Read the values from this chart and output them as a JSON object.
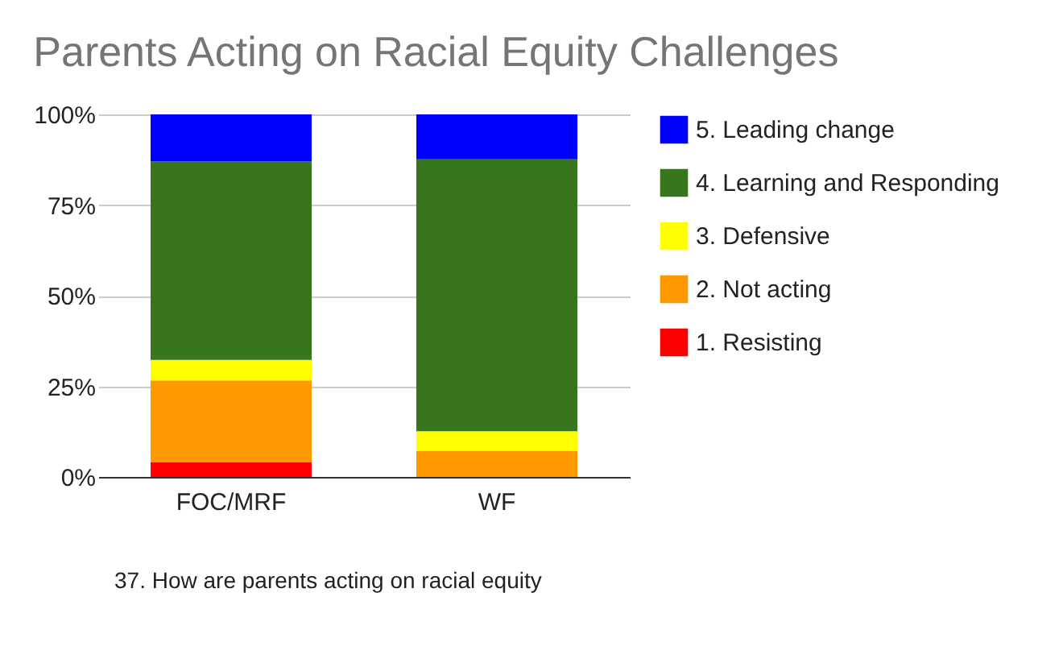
{
  "chart_data": {
    "type": "bar",
    "title": "Parents Acting on Racial Equity Challenges",
    "stacked": true,
    "categories": [
      "FOC/MRF",
      "WF"
    ],
    "series": [
      {
        "name": "1. Resisting",
        "color": "#ff0000",
        "values": [
          4.1,
          0
        ]
      },
      {
        "name": "2. Not acting",
        "color": "#ff9900",
        "values": [
          22.5,
          7.2
        ]
      },
      {
        "name": "3. Defensive",
        "color": "#ffff00",
        "values": [
          5.7,
          5.4
        ]
      },
      {
        "name": "4. Learning and Responding",
        "color": "#38761d",
        "values": [
          54.7,
          75.0
        ]
      },
      {
        "name": "5. Leading change",
        "color": "#0000ff",
        "values": [
          13.0,
          12.4
        ]
      }
    ],
    "ylim": [
      0,
      100
    ],
    "yticks": [
      {
        "value": 0,
        "label": "0%"
      },
      {
        "value": 25,
        "label": "25%"
      },
      {
        "value": 50,
        "label": "50%"
      },
      {
        "value": 75,
        "label": "75%"
      },
      {
        "value": 100,
        "label": "100%"
      }
    ],
    "grid": "y",
    "legend": "right",
    "annotations": [
      "37. How are parents acting on racial equity"
    ]
  }
}
